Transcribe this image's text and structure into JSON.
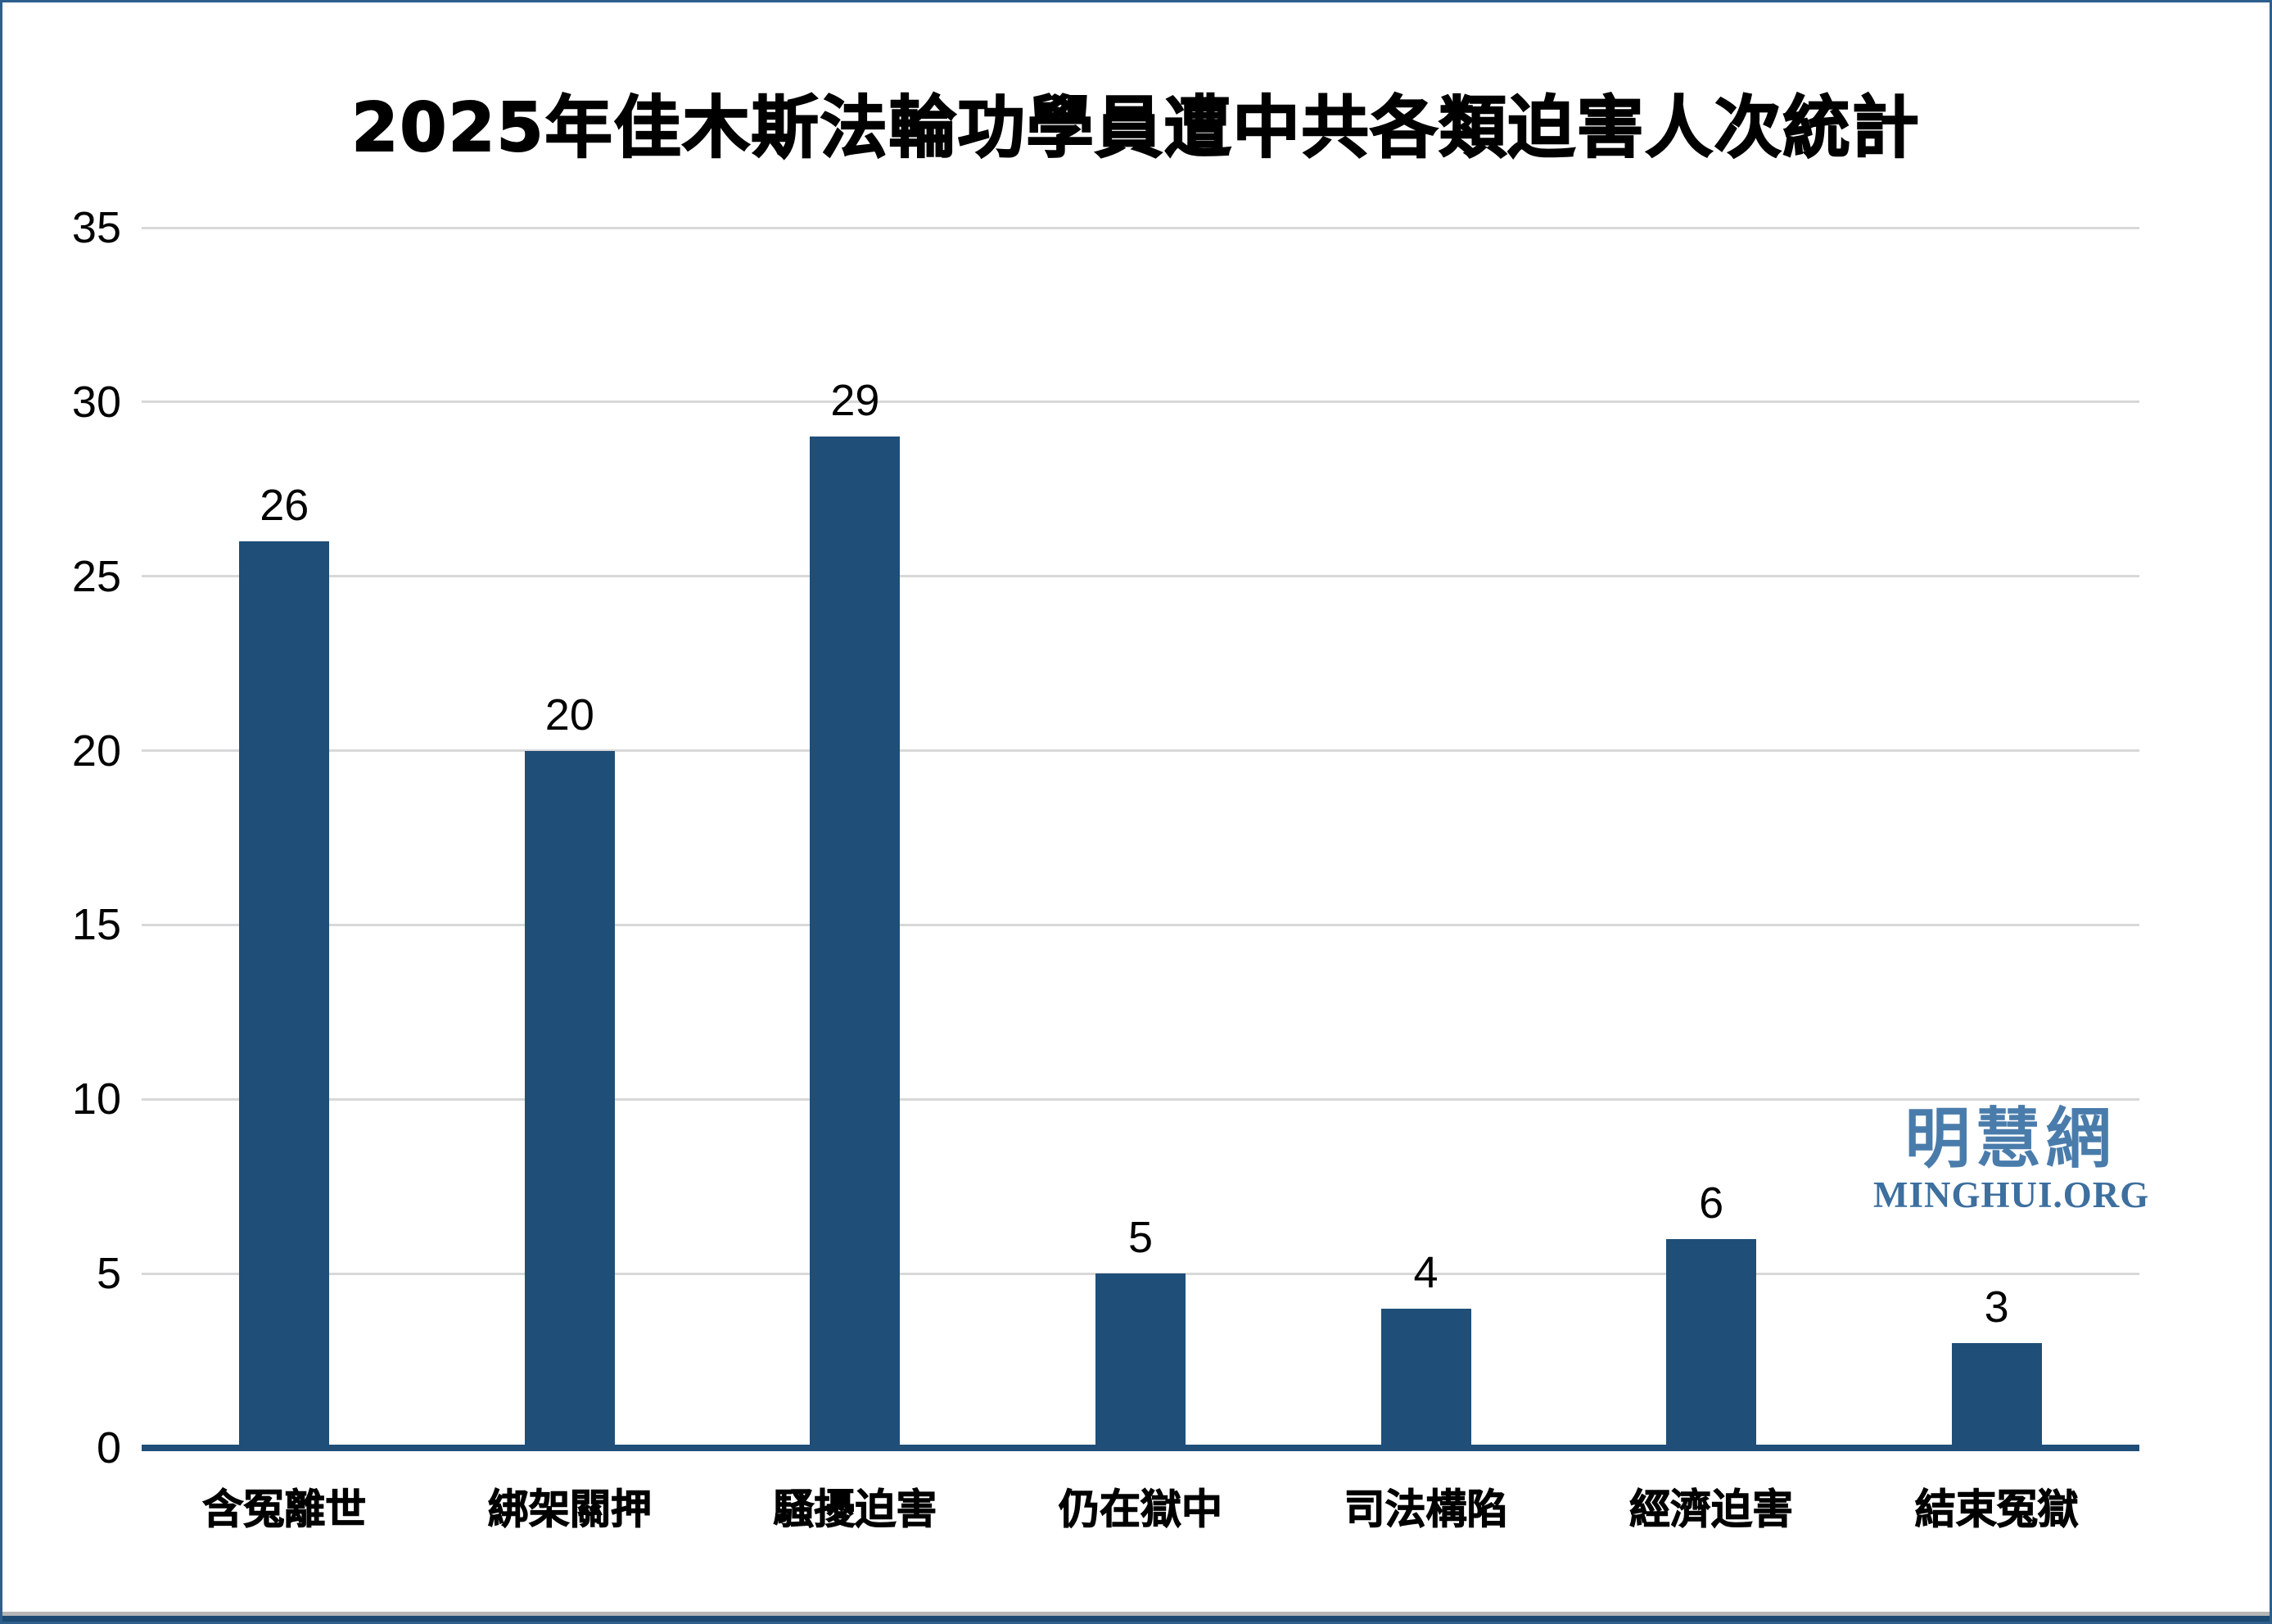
{
  "watermark": {
    "cjk": "明慧網",
    "latin": "MINGHUI.ORG",
    "cjk_color": "#4a7cab",
    "latin_color": "#3d6f9f"
  },
  "chart_data": {
    "type": "bar",
    "title": "2025年佳木斯法輪功學員遭中共各類迫害人次統計",
    "categories": [
      "含冤離世",
      "綁架關押",
      "騷擾迫害",
      "仍在獄中",
      "司法構陷",
      "經濟迫害",
      "結束冤獄"
    ],
    "values": [
      26,
      20,
      29,
      5,
      4,
      6,
      3
    ],
    "xlabel": "",
    "ylabel": "",
    "ylim": [
      0,
      35
    ],
    "yticks": [
      0,
      5,
      10,
      15,
      20,
      25,
      30,
      35
    ],
    "grid": true,
    "legend": false,
    "bar_color": "#1f4e79",
    "gridline_color": "#d8d8d8",
    "axis_color": "#1f4e79",
    "label_color": "#000000"
  }
}
